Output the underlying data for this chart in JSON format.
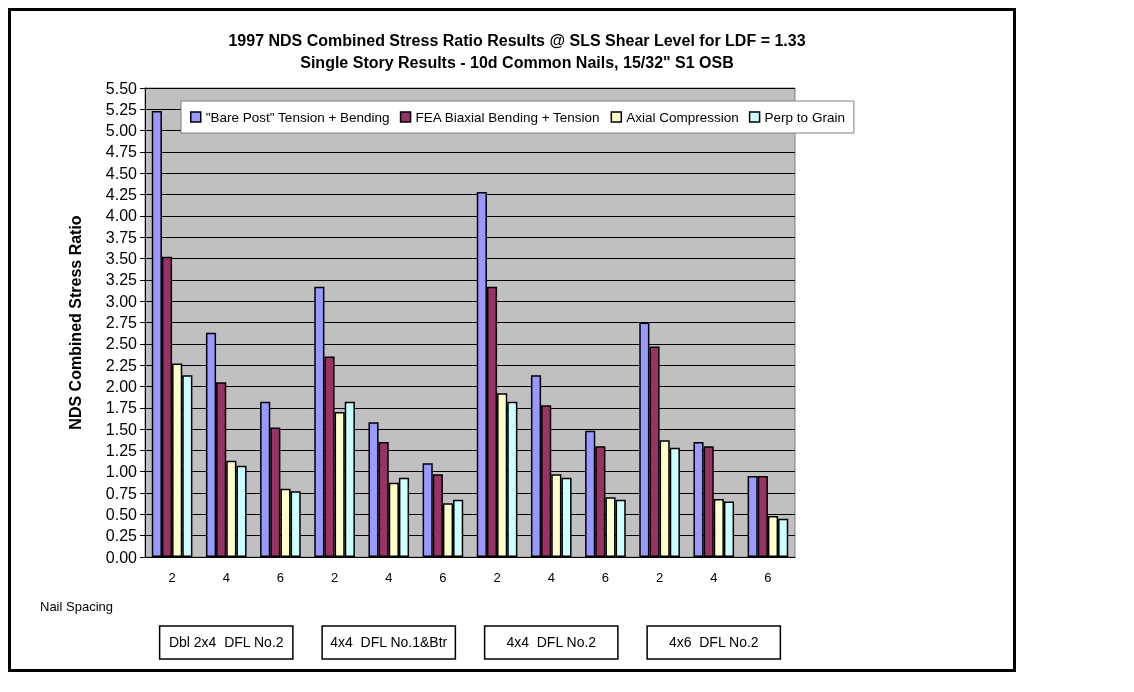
{
  "chart_data": {
    "type": "bar",
    "title": "1997 NDS Combined Stress Ratio Results @ SLS Shear Level for LDF = 1.33",
    "subtitle": "Single Story Results - 10d Common Nails, 15/32\" S1 OSB",
    "ylabel": "NDS Combined Stress Ratio",
    "categories": [
      "2",
      "4",
      "6",
      "2",
      "4",
      "6",
      "2",
      "4",
      "6",
      "2",
      "4",
      "6"
    ],
    "series": [
      {
        "name": "\"Bare Post\" Tension + Bending",
        "color": "#9999ff",
        "values": [
          5.23,
          2.63,
          1.82,
          3.17,
          1.58,
          1.1,
          4.28,
          2.13,
          1.48,
          2.75,
          1.35,
          0.95
        ]
      },
      {
        "name": "FEA Biaxial Bending + Tension",
        "color": "#993366",
        "values": [
          3.52,
          2.05,
          1.52,
          2.35,
          1.35,
          0.97,
          3.17,
          1.78,
          1.3,
          2.47,
          1.3,
          0.95
        ]
      },
      {
        "name": "Axial Compression",
        "color": "#ffffcc",
        "values": [
          2.27,
          1.13,
          0.8,
          1.7,
          0.87,
          0.63,
          1.92,
          0.97,
          0.7,
          1.37,
          0.68,
          0.48
        ]
      },
      {
        "name": "Perp to Grain",
        "color": "#ccffff",
        "values": [
          2.13,
          1.07,
          0.77,
          1.82,
          0.93,
          0.67,
          1.82,
          0.93,
          0.67,
          1.28,
          0.65,
          0.45
        ]
      }
    ],
    "ylim": [
      0,
      5.5
    ],
    "yticks": [
      {
        "value": 0,
        "label": "0.00"
      },
      0.25,
      {
        "value": 0.5,
        "label": "0.50"
      },
      0.75,
      {
        "value": 1,
        "label": "1.00"
      },
      1.25,
      {
        "value": 1.5,
        "label": "1.50"
      },
      1.75,
      {
        "value": 2,
        "label": "2.00"
      },
      2.25,
      {
        "value": 2.5,
        "label": "2.50"
      },
      2.75,
      {
        "value": 3,
        "label": "3.00"
      },
      3.25,
      {
        "value": 3.5,
        "label": "3.50"
      },
      3.75,
      {
        "value": 4,
        "label": "4.00"
      },
      4.25,
      {
        "value": 4.5,
        "label": "4.50"
      },
      4.75,
      {
        "value": 5,
        "label": "5.00"
      },
      5.25,
      {
        "value": 5.5,
        "label": "5.50"
      }
    ],
    "grid": "y",
    "legend": "top",
    "annotations": [
      "Nail Spacing",
      "Dbl 2x4  DFL No.2",
      "4x4  DFL No.1&Btr",
      "4x4  DFL No.2",
      "4x6  DFL No.2"
    ]
  }
}
